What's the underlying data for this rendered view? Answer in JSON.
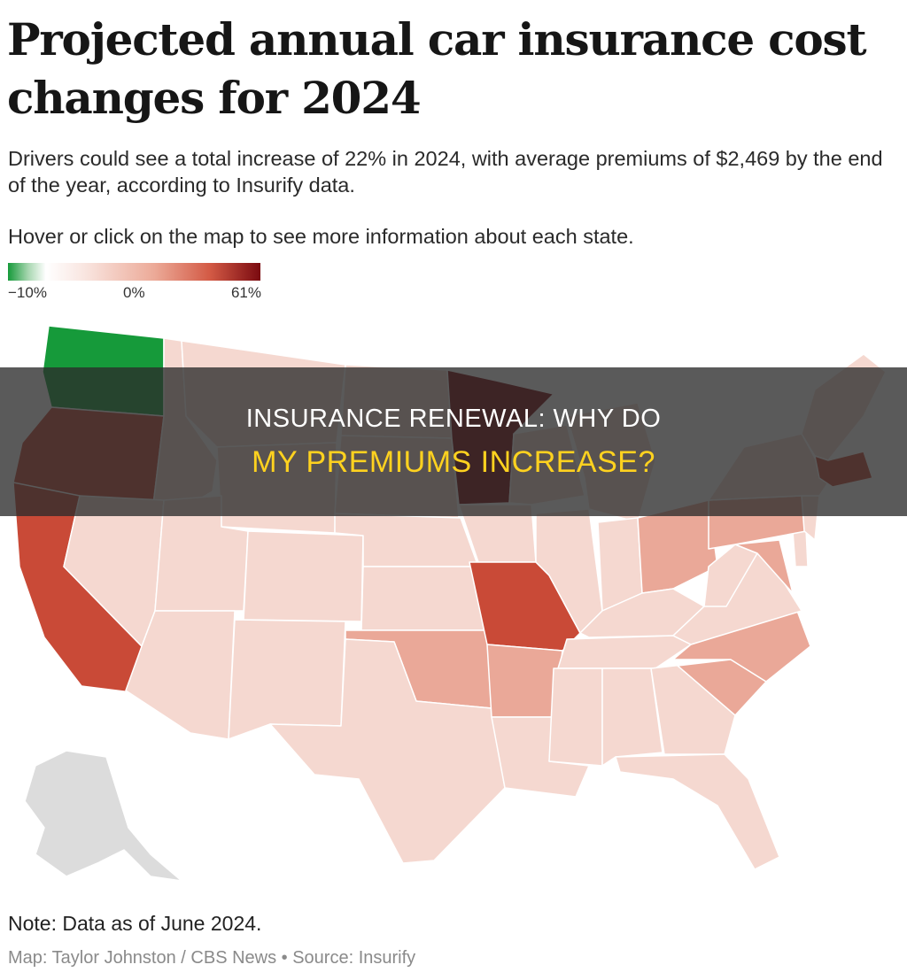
{
  "title": "Projected annual car insurance cost changes for 2024",
  "subtitle": "Drivers could see a total increase of 22% in 2024, with average premiums of $2,469 by the end of the year, according to Insurify data.",
  "instruction": "Hover or click on the map to see more information about each state.",
  "legend": {
    "min_label": "−10%",
    "mid_label": "0%",
    "max_label": "61%"
  },
  "note": "Note: Data as of June 2024.",
  "credit": "Map: Taylor Johnston / CBS News • Source: Insurify",
  "banner": {
    "line1": "INSURANCE RENEWAL: WHY DO",
    "line2": "MY PREMIUMS INCREASE?"
  },
  "colors": {
    "decrease": "#169a3a",
    "neutral": "#ffffff",
    "light": "#f5d8d0",
    "medium": "#eaa898",
    "high": "#c94a37",
    "highest": "#7a0a10",
    "no_data": "#dcdcdc",
    "banner_text": "#ffd21f"
  },
  "map_regions": [
    {
      "name": "washington",
      "level": "decrease"
    },
    {
      "name": "oregon",
      "level": "high"
    },
    {
      "name": "california",
      "level": "high"
    },
    {
      "name": "idaho",
      "level": "light"
    },
    {
      "name": "nevada",
      "level": "light"
    },
    {
      "name": "montana",
      "level": "light"
    },
    {
      "name": "wyoming",
      "level": "light"
    },
    {
      "name": "utah",
      "level": "light"
    },
    {
      "name": "arizona",
      "level": "light"
    },
    {
      "name": "colorado",
      "level": "light"
    },
    {
      "name": "new-mexico",
      "level": "light"
    },
    {
      "name": "north-dakota",
      "level": "light"
    },
    {
      "name": "south-dakota",
      "level": "light"
    },
    {
      "name": "nebraska",
      "level": "light"
    },
    {
      "name": "kansas",
      "level": "light"
    },
    {
      "name": "oklahoma",
      "level": "medium"
    },
    {
      "name": "texas",
      "level": "light"
    },
    {
      "name": "minnesota",
      "level": "highest"
    },
    {
      "name": "iowa",
      "level": "light"
    },
    {
      "name": "missouri",
      "level": "high"
    },
    {
      "name": "arkansas",
      "level": "medium"
    },
    {
      "name": "louisiana",
      "level": "light"
    },
    {
      "name": "wisconsin",
      "level": "light"
    },
    {
      "name": "illinois",
      "level": "light"
    },
    {
      "name": "michigan",
      "level": "light"
    },
    {
      "name": "indiana",
      "level": "light"
    },
    {
      "name": "ohio",
      "level": "medium"
    },
    {
      "name": "kentucky",
      "level": "light"
    },
    {
      "name": "tennessee",
      "level": "light"
    },
    {
      "name": "mississippi",
      "level": "light"
    },
    {
      "name": "alabama",
      "level": "light"
    },
    {
      "name": "georgia",
      "level": "light"
    },
    {
      "name": "florida",
      "level": "light"
    },
    {
      "name": "south-carolina",
      "level": "medium"
    },
    {
      "name": "north-carolina",
      "level": "medium"
    },
    {
      "name": "virginia",
      "level": "light"
    },
    {
      "name": "west-virginia",
      "level": "light"
    },
    {
      "name": "maryland",
      "level": "medium"
    },
    {
      "name": "delaware",
      "level": "light"
    },
    {
      "name": "pennsylvania",
      "level": "medium"
    },
    {
      "name": "new-jersey",
      "level": "light"
    },
    {
      "name": "new-york",
      "level": "light"
    },
    {
      "name": "new-england",
      "level": "light"
    },
    {
      "name": "massachusetts",
      "level": "high"
    },
    {
      "name": "alaska",
      "level": "no_data"
    }
  ]
}
